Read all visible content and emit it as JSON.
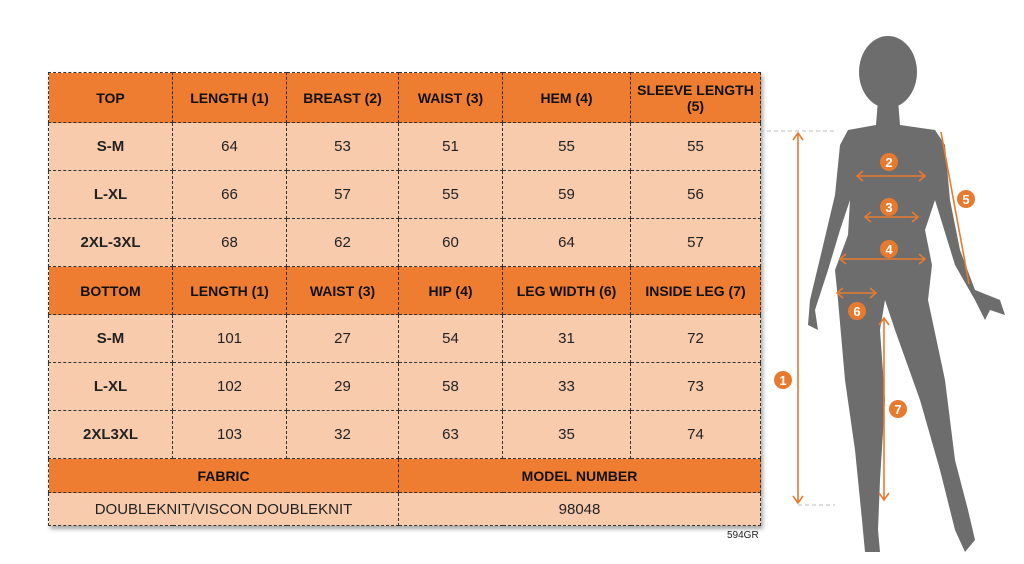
{
  "top": {
    "headers": [
      "TOP",
      "LENGTH (1)",
      "BREAST (2)",
      "WAIST (3)",
      "HEM (4)",
      "SLEEVE LENGTH (5)"
    ],
    "rows": [
      [
        "S-M",
        "64",
        "53",
        "51",
        "55",
        "55"
      ],
      [
        "L-XL",
        "66",
        "57",
        "55",
        "59",
        "56"
      ],
      [
        "2XL-3XL",
        "68",
        "62",
        "60",
        "64",
        "57"
      ]
    ]
  },
  "bottom": {
    "headers": [
      "BOTTOM",
      "LENGTH (1)",
      "WAIST (3)",
      "HIP (4)",
      "LEG WIDTH (6)",
      "INSIDE LEG (7)"
    ],
    "rows": [
      [
        "S-M",
        "101",
        "27",
        "54",
        "31",
        "72"
      ],
      [
        "L-XL",
        "102",
        "29",
        "58",
        "33",
        "73"
      ],
      [
        "2XL3XL",
        "103",
        "32",
        "63",
        "35",
        "74"
      ]
    ]
  },
  "fabric": {
    "label": "FABRIC",
    "value": "DOUBLEKNIT/VISCON DOUBLEKNIT"
  },
  "model": {
    "label": "MODEL NUMBER",
    "value": "98048"
  },
  "code": "594GR",
  "figure": {
    "markers": [
      "1",
      "2",
      "3",
      "4",
      "5",
      "6",
      "7"
    ]
  },
  "colors": {
    "header": "#ee7d31",
    "cell": "#f8cbad",
    "silhouette": "#6d6d6d",
    "accent": "#e87a30"
  }
}
